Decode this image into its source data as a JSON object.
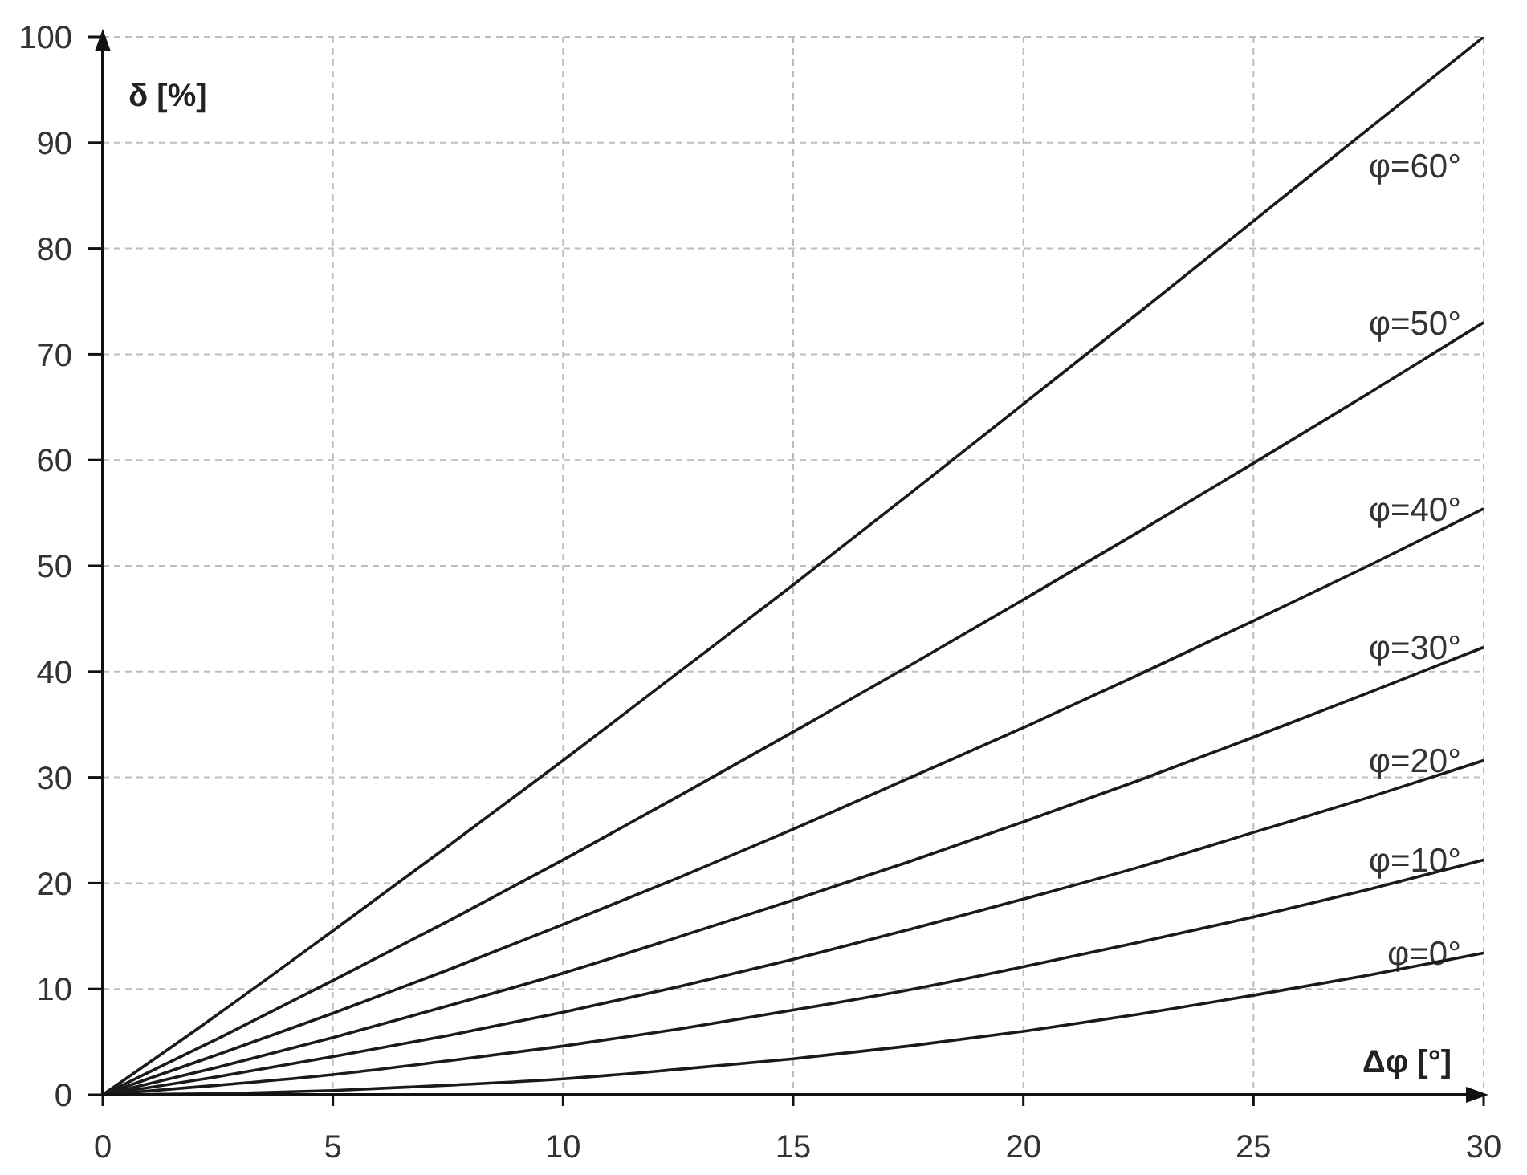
{
  "chart_data": {
    "type": "line",
    "xlabel": "Δφ [°]",
    "ylabel": "δ [%]",
    "x": [
      0,
      2.5,
      5,
      7.5,
      10,
      12.5,
      15,
      17.5,
      20,
      22.5,
      25,
      27.5,
      30
    ],
    "series": [
      {
        "name": "φ=0°",
        "color": "#1a1a1a",
        "values": [
          0,
          0.1,
          0.4,
          0.9,
          1.5,
          2.4,
          3.4,
          4.6,
          6.0,
          7.6,
          9.4,
          11.3,
          13.4
        ]
      },
      {
        "name": "φ=10°",
        "color": "#1a1a1a",
        "values": [
          0,
          0.9,
          1.9,
          3.2,
          4.6,
          6.2,
          8.0,
          9.9,
          12.1,
          14.4,
          16.8,
          19.4,
          22.2
        ]
      },
      {
        "name": "φ=20°",
        "color": "#1a1a1a",
        "values": [
          0,
          1.7,
          3.6,
          5.6,
          7.8,
          10.2,
          12.8,
          15.6,
          18.5,
          21.5,
          24.8,
          28.1,
          31.6
        ]
      },
      {
        "name": "φ=30°",
        "color": "#1a1a1a",
        "values": [
          0,
          2.6,
          5.4,
          8.4,
          11.5,
          14.9,
          18.4,
          22.0,
          25.8,
          29.7,
          33.8,
          38.0,
          42.3
        ]
      },
      {
        "name": "φ=40°",
        "color": "#1a1a1a",
        "values": [
          0,
          3.8,
          7.7,
          11.8,
          16.1,
          20.5,
          25.1,
          29.9,
          34.7,
          39.7,
          44.8,
          50.0,
          55.4
        ]
      },
      {
        "name": "φ=50°",
        "color": "#1a1a1a",
        "values": [
          0,
          5.3,
          10.8,
          16.4,
          22.2,
          28.2,
          34.3,
          40.5,
          46.8,
          53.2,
          59.7,
          66.3,
          73.0
        ]
      },
      {
        "name": "φ=60°",
        "color": "#1a1a1a",
        "values": [
          0,
          7.6,
          15.5,
          23.5,
          31.6,
          39.9,
          48.2,
          56.7,
          65.3,
          73.9,
          82.6,
          91.3,
          100
        ]
      }
    ],
    "xlim": [
      0,
      30
    ],
    "ylim": [
      0,
      100
    ],
    "xticks": [
      0,
      5,
      10,
      15,
      20,
      25,
      30
    ],
    "yticks": [
      0,
      10,
      20,
      30,
      40,
      50,
      60,
      70,
      80,
      90,
      100
    ],
    "grid": true,
    "marker": "none",
    "line_style": "solid"
  }
}
